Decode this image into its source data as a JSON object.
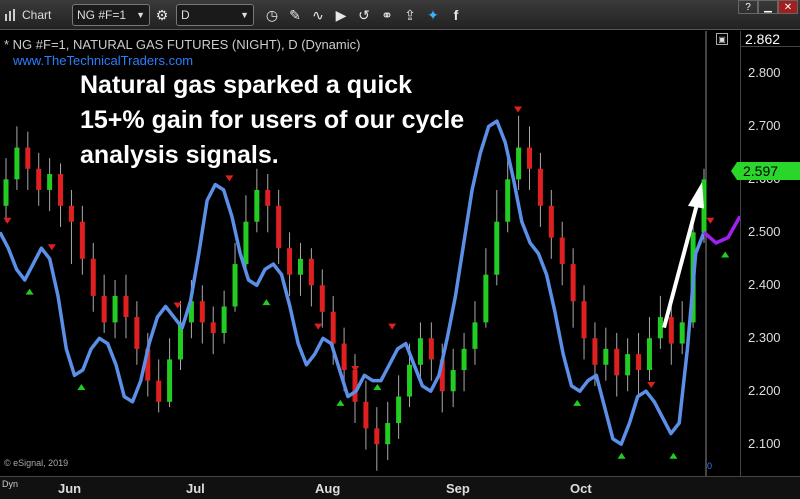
{
  "toolbar": {
    "app_label": "Chart",
    "symbol": "NG #F=1",
    "interval": "D",
    "help": "?"
  },
  "chart": {
    "series_title": "* NG #F=1, NATURAL GAS FUTURES (NIGHT), D (Dynamic)",
    "website": "www.TheTechnicalTraders.com",
    "headline": "Natural gas sparked a quick 15+% gain for users of our cycle analysis signals.",
    "copyright": "© eSignal, 2019",
    "dyn_label": "Dyn",
    "zero_label": "0",
    "last_price": "2.862",
    "current_price": "2.597",
    "colors": {
      "up": "#22cc22",
      "down": "#e02020",
      "cycle": "#5b8fe8",
      "projection": "#a020f0",
      "price_tag": "#2bd62b"
    }
  },
  "chart_data": {
    "type": "candlestick",
    "y_ticks": [
      "2.800",
      "2.700",
      "2.600",
      "2.500",
      "2.400",
      "2.300",
      "2.200",
      "2.100"
    ],
    "x_ticks": [
      "Jun",
      "Jul",
      "Aug",
      "Sep",
      "Oct"
    ],
    "ylim": [
      2.04,
      2.88
    ],
    "cycle_line": [
      2.5,
      2.47,
      2.43,
      2.41,
      2.44,
      2.47,
      2.45,
      2.38,
      2.28,
      2.23,
      2.24,
      2.28,
      2.3,
      2.29,
      2.25,
      2.19,
      2.18,
      2.22,
      2.29,
      2.34,
      2.36,
      2.34,
      2.32,
      2.37,
      2.46,
      2.56,
      2.59,
      2.58,
      2.53,
      2.46,
      2.41,
      2.4,
      2.43,
      2.44,
      2.42,
      2.36,
      2.29,
      2.25,
      2.27,
      2.3,
      2.29,
      2.24,
      2.19,
      2.2,
      2.23,
      2.22,
      2.22,
      2.25,
      2.28,
      2.29,
      2.25,
      2.21,
      2.2,
      2.23,
      2.3,
      2.38,
      2.48,
      2.58,
      2.65,
      2.7,
      2.71,
      2.67,
      2.6,
      2.52,
      2.48,
      2.46,
      2.42,
      2.35,
      2.27,
      2.21,
      2.2,
      2.22,
      2.23,
      2.17,
      2.11,
      2.1,
      2.14,
      2.19,
      2.2,
      2.18,
      2.15,
      2.12,
      2.14,
      2.28,
      2.46,
      2.5
    ],
    "projection_line": [
      2.5,
      2.48,
      2.49,
      2.53
    ],
    "candles": [
      [
        2.55,
        2.6,
        2.64,
        2.52
      ],
      [
        2.6,
        2.66,
        2.7,
        2.58
      ],
      [
        2.66,
        2.62,
        2.69,
        2.58
      ],
      [
        2.62,
        2.58,
        2.65,
        2.55
      ],
      [
        2.58,
        2.61,
        2.64,
        2.54
      ],
      [
        2.61,
        2.55,
        2.63,
        2.51
      ],
      [
        2.55,
        2.52,
        2.58,
        2.44
      ],
      [
        2.52,
        2.45,
        2.55,
        2.42
      ],
      [
        2.45,
        2.38,
        2.48,
        2.35
      ],
      [
        2.38,
        2.33,
        2.42,
        2.31
      ],
      [
        2.33,
        2.38,
        2.41,
        2.3
      ],
      [
        2.38,
        2.34,
        2.42,
        2.3
      ],
      [
        2.34,
        2.28,
        2.37,
        2.25
      ],
      [
        2.28,
        2.22,
        2.31,
        2.19
      ],
      [
        2.22,
        2.18,
        2.26,
        2.16
      ],
      [
        2.18,
        2.26,
        2.3,
        2.17
      ],
      [
        2.26,
        2.33,
        2.37,
        2.24
      ],
      [
        2.33,
        2.37,
        2.41,
        2.3
      ],
      [
        2.37,
        2.33,
        2.4,
        2.29
      ],
      [
        2.33,
        2.31,
        2.36,
        2.27
      ],
      [
        2.31,
        2.36,
        2.39,
        2.29
      ],
      [
        2.36,
        2.44,
        2.48,
        2.35
      ],
      [
        2.44,
        2.52,
        2.57,
        2.43
      ],
      [
        2.52,
        2.58,
        2.62,
        2.5
      ],
      [
        2.58,
        2.55,
        2.61,
        2.5
      ],
      [
        2.55,
        2.47,
        2.58,
        2.44
      ],
      [
        2.47,
        2.42,
        2.5,
        2.38
      ],
      [
        2.42,
        2.45,
        2.48,
        2.38
      ],
      [
        2.45,
        2.4,
        2.47,
        2.36
      ],
      [
        2.4,
        2.35,
        2.43,
        2.32
      ],
      [
        2.35,
        2.29,
        2.38,
        2.25
      ],
      [
        2.29,
        2.24,
        2.32,
        2.2
      ],
      [
        2.24,
        2.18,
        2.27,
        2.14
      ],
      [
        2.18,
        2.13,
        2.22,
        2.09
      ],
      [
        2.13,
        2.1,
        2.17,
        2.05
      ],
      [
        2.1,
        2.14,
        2.18,
        2.07
      ],
      [
        2.14,
        2.19,
        2.23,
        2.11
      ],
      [
        2.19,
        2.25,
        2.29,
        2.17
      ],
      [
        2.25,
        2.3,
        2.33,
        2.22
      ],
      [
        2.3,
        2.26,
        2.33,
        2.22
      ],
      [
        2.26,
        2.2,
        2.29,
        2.16
      ],
      [
        2.2,
        2.24,
        2.28,
        2.17
      ],
      [
        2.24,
        2.28,
        2.31,
        2.2
      ],
      [
        2.28,
        2.33,
        2.37,
        2.25
      ],
      [
        2.33,
        2.42,
        2.47,
        2.32
      ],
      [
        2.42,
        2.52,
        2.58,
        2.4
      ],
      [
        2.52,
        2.6,
        2.65,
        2.5
      ],
      [
        2.6,
        2.66,
        2.72,
        2.58
      ],
      [
        2.66,
        2.62,
        2.7,
        2.58
      ],
      [
        2.62,
        2.55,
        2.65,
        2.51
      ],
      [
        2.55,
        2.49,
        2.58,
        2.45
      ],
      [
        2.49,
        2.44,
        2.52,
        2.4
      ],
      [
        2.44,
        2.37,
        2.47,
        2.32
      ],
      [
        2.37,
        2.3,
        2.4,
        2.26
      ],
      [
        2.3,
        2.25,
        2.33,
        2.21
      ],
      [
        2.25,
        2.28,
        2.32,
        2.22
      ],
      [
        2.28,
        2.23,
        2.31,
        2.19
      ],
      [
        2.23,
        2.27,
        2.3,
        2.2
      ],
      [
        2.27,
        2.24,
        2.31,
        2.19
      ],
      [
        2.24,
        2.3,
        2.34,
        2.22
      ],
      [
        2.3,
        2.34,
        2.38,
        2.28
      ],
      [
        2.34,
        2.29,
        2.36,
        2.25
      ],
      [
        2.29,
        2.33,
        2.37,
        2.27
      ],
      [
        2.33,
        2.5,
        2.53,
        2.32
      ],
      [
        2.5,
        2.6,
        2.62,
        2.48
      ]
    ],
    "peak_markers": [
      [
        0.01,
        2.52
      ],
      [
        0.07,
        2.47
      ],
      [
        0.24,
        2.36
      ],
      [
        0.31,
        2.6
      ],
      [
        0.43,
        2.32
      ],
      [
        0.48,
        2.24
      ],
      [
        0.53,
        2.32
      ],
      [
        0.7,
        2.73
      ],
      [
        0.88,
        2.21
      ],
      [
        0.96,
        2.52
      ]
    ],
    "trough_markers": [
      [
        0.04,
        2.39
      ],
      [
        0.11,
        2.21
      ],
      [
        0.36,
        2.37
      ],
      [
        0.46,
        2.18
      ],
      [
        0.51,
        2.21
      ],
      [
        0.78,
        2.18
      ],
      [
        0.84,
        2.08
      ],
      [
        0.91,
        2.08
      ],
      [
        0.98,
        2.46
      ]
    ]
  }
}
